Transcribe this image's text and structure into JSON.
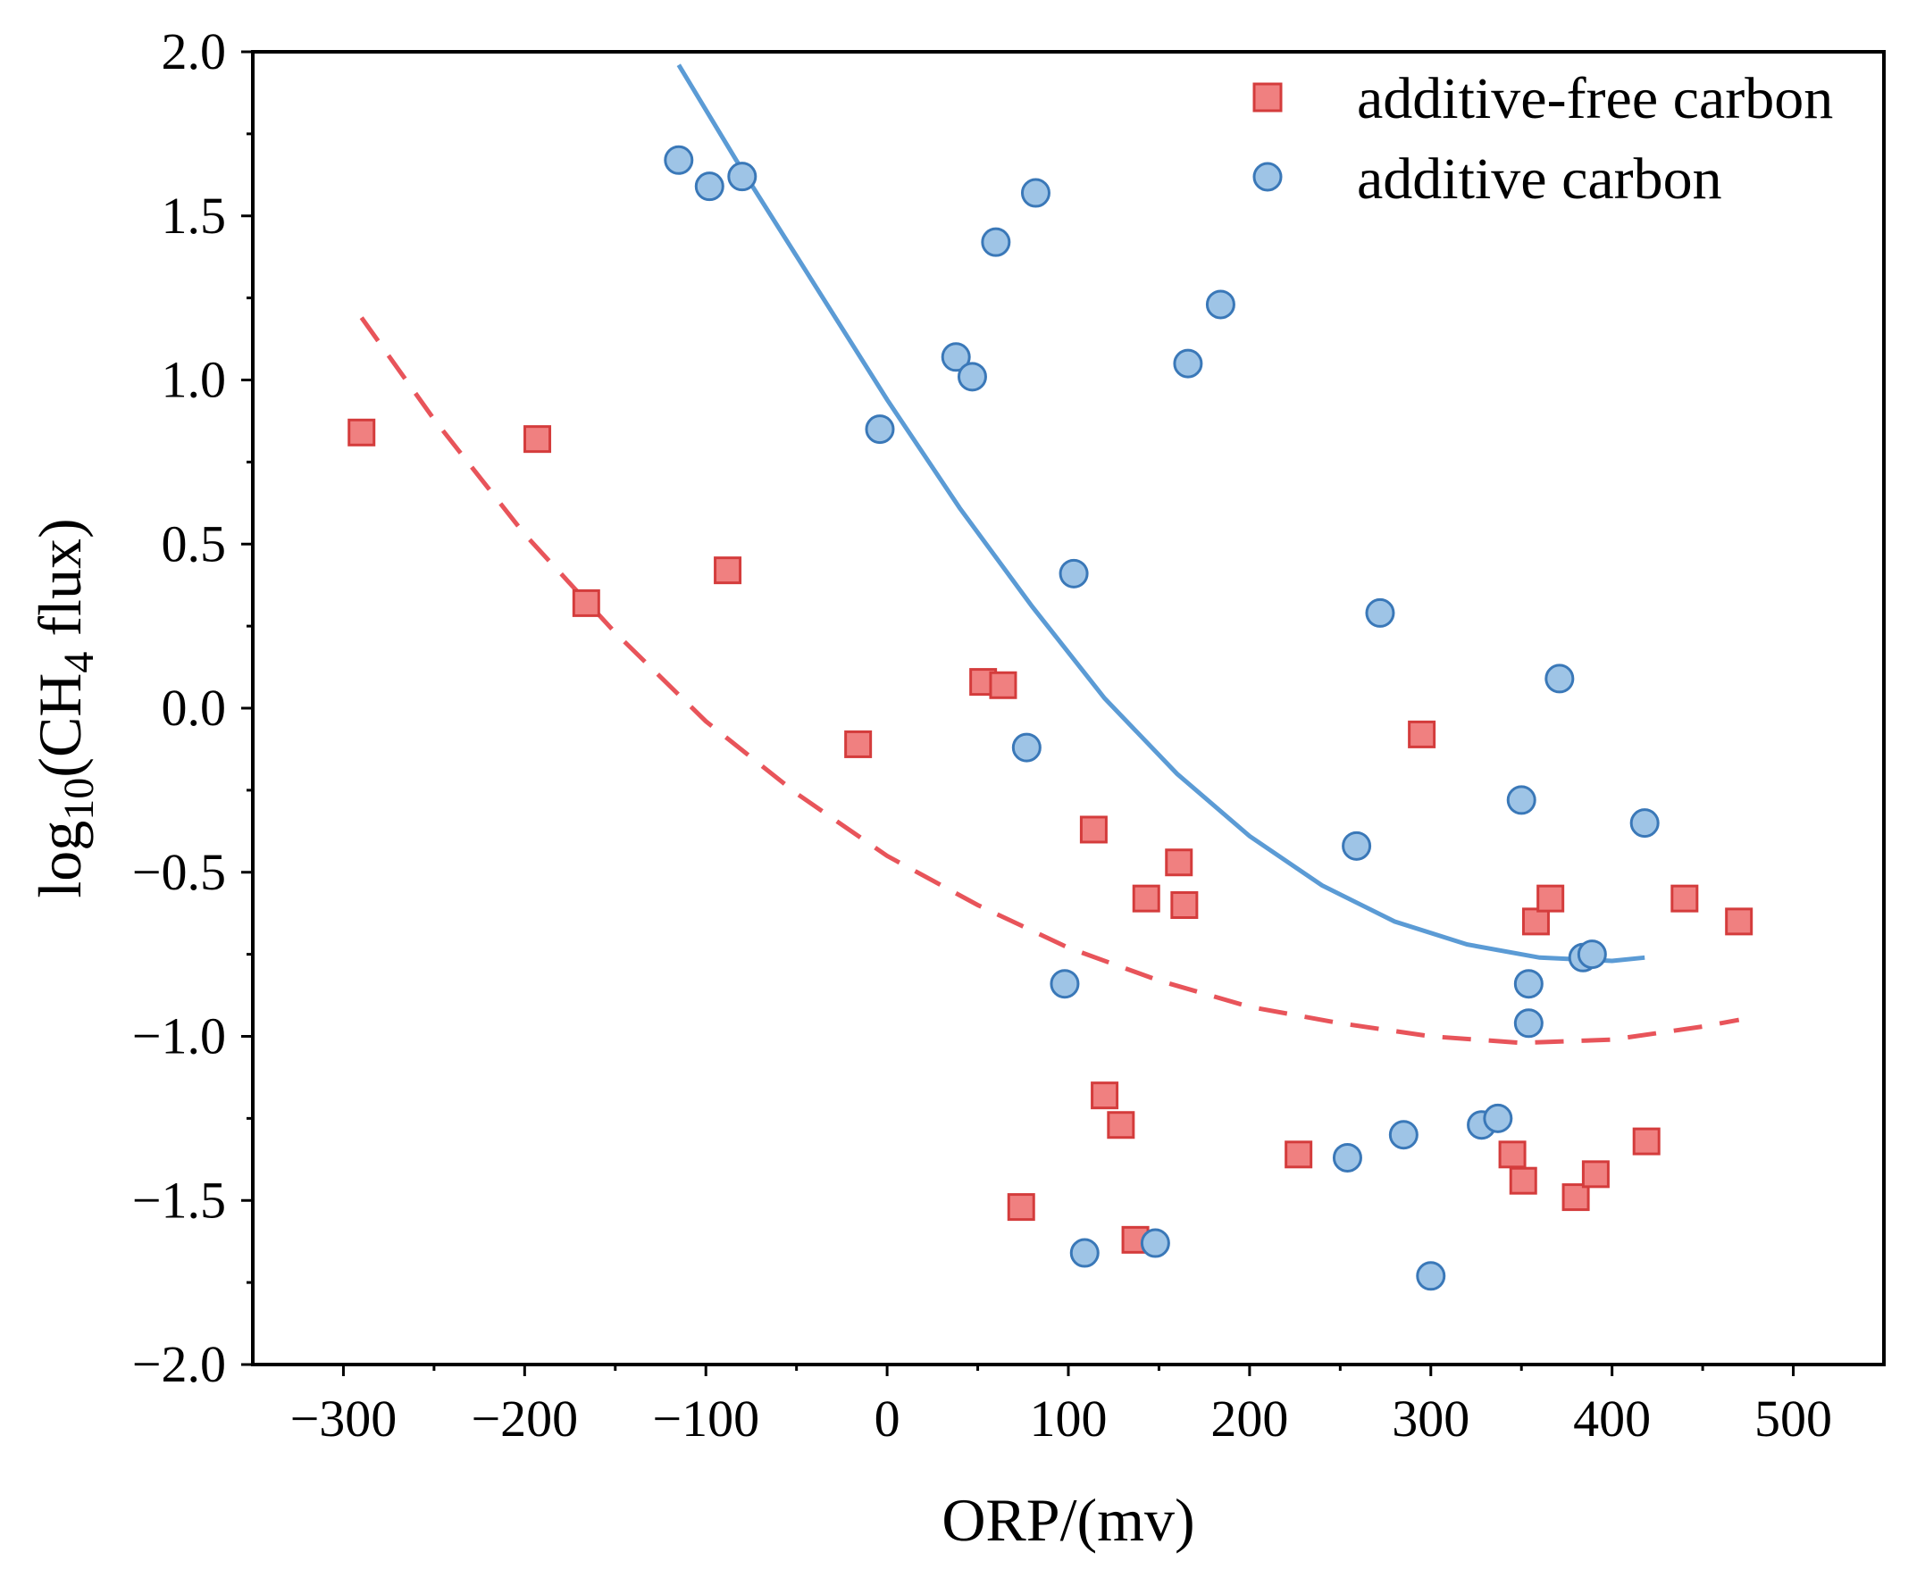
{
  "chart_data": {
    "type": "scatter",
    "xlabel": "ORP/(mv)",
    "ylabel": "log10(CH4 flux)",
    "ylabel_parts": {
      "prefix": "log",
      "base": "10",
      "mid": "(CH",
      "sub": "4",
      "suffix": " flux)"
    },
    "xlim": [
      -350,
      550
    ],
    "ylim": [
      -2.0,
      2.0
    ],
    "x_ticks": [
      -300,
      -200,
      -100,
      0,
      100,
      200,
      300,
      400,
      500
    ],
    "x_tick_labels": [
      "−300",
      "−200",
      "−100",
      "0",
      "100",
      "200",
      "300",
      "400",
      "500"
    ],
    "y_ticks": [
      2.0,
      1.5,
      1.0,
      0.5,
      0.0,
      -0.5,
      -1.0,
      -1.5,
      -2.0
    ],
    "y_tick_labels": [
      "2.0",
      "1.5",
      "1.0",
      "0.5",
      "0.0",
      "−0.5",
      "−1.0",
      "−1.5",
      "−2.0"
    ],
    "grid": false,
    "legend_position": "top-right",
    "series": [
      {
        "name": "additive-free carbon",
        "marker": "square",
        "color": "#f08080",
        "edge_color": "#d43c3c",
        "points": [
          [
            -290,
            0.84
          ],
          [
            -193,
            0.82
          ],
          [
            -166,
            0.32
          ],
          [
            -88,
            0.42
          ],
          [
            -16,
            -0.11
          ],
          [
            53,
            0.08
          ],
          [
            64,
            0.07
          ],
          [
            74,
            -1.52
          ],
          [
            114,
            -0.37
          ],
          [
            120,
            -1.18
          ],
          [
            129,
            -1.27
          ],
          [
            137,
            -1.62
          ],
          [
            143,
            -0.58
          ],
          [
            161,
            -0.47
          ],
          [
            164,
            -0.6
          ],
          [
            227,
            -1.36
          ],
          [
            295,
            -0.08
          ],
          [
            345,
            -1.36
          ],
          [
            351,
            -1.44
          ],
          [
            358,
            -0.65
          ],
          [
            366,
            -0.58
          ],
          [
            380,
            -1.49
          ],
          [
            391,
            -1.42
          ],
          [
            419,
            -1.32
          ],
          [
            440,
            -0.58
          ],
          [
            470,
            -0.65
          ]
        ],
        "fit": {
          "style": "dashed",
          "points": [
            [
              -290,
              1.19
            ],
            [
              -250,
              0.88
            ],
            [
              -200,
              0.53
            ],
            [
              -150,
              0.23
            ],
            [
              -100,
              -0.04
            ],
            [
              -50,
              -0.26
            ],
            [
              0,
              -0.45
            ],
            [
              50,
              -0.6
            ],
            [
              100,
              -0.73
            ],
            [
              150,
              -0.83
            ],
            [
              200,
              -0.91
            ],
            [
              250,
              -0.96
            ],
            [
              300,
              -1.0
            ],
            [
              350,
              -1.02
            ],
            [
              400,
              -1.01
            ],
            [
              450,
              -0.97
            ],
            [
              470,
              -0.95
            ]
          ]
        }
      },
      {
        "name": "additive carbon",
        "marker": "circle",
        "color": "#9ec4e6",
        "edge_color": "#3a78b8",
        "points": [
          [
            -115,
            1.67
          ],
          [
            -98,
            1.59
          ],
          [
            -80,
            1.62
          ],
          [
            -4,
            0.85
          ],
          [
            38,
            1.07
          ],
          [
            47,
            1.01
          ],
          [
            60,
            1.42
          ],
          [
            77,
            -0.12
          ],
          [
            82,
            1.57
          ],
          [
            98,
            -0.84
          ],
          [
            103,
            0.41
          ],
          [
            109,
            -1.66
          ],
          [
            148,
            -1.63
          ],
          [
            166,
            1.05
          ],
          [
            184,
            1.23
          ],
          [
            254,
            -1.37
          ],
          [
            259,
            -0.42
          ],
          [
            272,
            0.29
          ],
          [
            285,
            -1.3
          ],
          [
            300,
            -1.73
          ],
          [
            328,
            -1.27
          ],
          [
            337,
            -1.25
          ],
          [
            350,
            -0.28
          ],
          [
            354,
            -0.84
          ],
          [
            354,
            -0.96
          ],
          [
            371,
            0.09
          ],
          [
            384,
            -0.76
          ],
          [
            389,
            -0.75
          ],
          [
            418,
            -0.35
          ]
        ],
        "fit": {
          "style": "solid",
          "points": [
            [
              -115,
              1.96
            ],
            [
              -80,
              1.64
            ],
            [
              -40,
              1.29
            ],
            [
              0,
              0.94
            ],
            [
              40,
              0.61
            ],
            [
              80,
              0.31
            ],
            [
              120,
              0.03
            ],
            [
              160,
              -0.2
            ],
            [
              200,
              -0.39
            ],
            [
              240,
              -0.54
            ],
            [
              280,
              -0.65
            ],
            [
              320,
              -0.72
            ],
            [
              360,
              -0.76
            ],
            [
              400,
              -0.77
            ],
            [
              418,
              -0.76
            ]
          ]
        }
      }
    ]
  }
}
